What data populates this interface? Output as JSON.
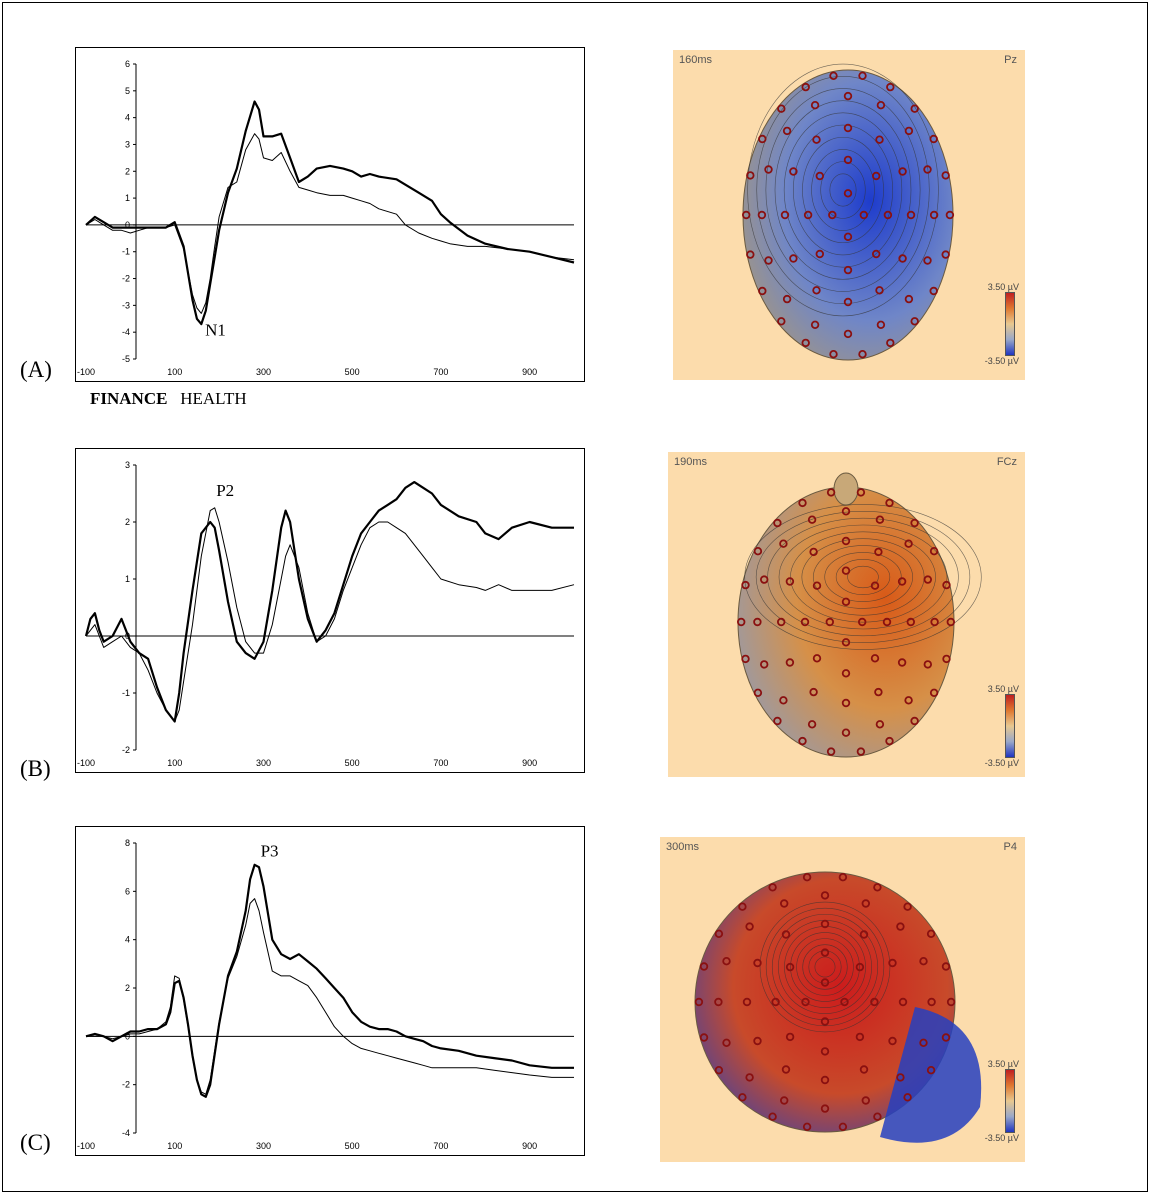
{
  "legend": {
    "bold": "FINANCE",
    "normal": "HEALTH"
  },
  "chart_data": [
    {
      "type": "line",
      "panel_label": "(A)",
      "peak_label": {
        "text": "N1",
        "x": 155,
        "y": -3.6
      },
      "xlim": [
        -100,
        1000
      ],
      "ylim": [
        -5,
        6
      ],
      "xticks": [
        -100,
        100,
        300,
        500,
        700,
        900
      ],
      "yticks": [
        -5,
        -4,
        -3,
        -2,
        -1,
        0,
        1,
        2,
        3,
        4,
        5,
        6
      ],
      "series": [
        {
          "style": "bold",
          "x": [
            -100,
            -80,
            -60,
            -40,
            -20,
            0,
            20,
            40,
            60,
            80,
            100,
            120,
            140,
            150,
            160,
            170,
            180,
            190,
            200,
            220,
            240,
            260,
            280,
            290,
            300,
            320,
            340,
            360,
            380,
            400,
            420,
            450,
            480,
            500,
            520,
            540,
            560,
            600,
            620,
            650,
            680,
            700,
            720,
            760,
            800,
            850,
            900,
            950,
            1000
          ],
          "y": [
            0,
            0.3,
            0.1,
            -0.1,
            -0.1,
            -0.1,
            -0.1,
            -0.1,
            -0.1,
            -0.1,
            0.1,
            -0.8,
            -2.8,
            -3.5,
            -3.7,
            -3.2,
            -2.2,
            -1.2,
            -0.2,
            1.2,
            2.1,
            3.5,
            4.6,
            4.3,
            3.3,
            3.3,
            3.4,
            2.5,
            1.6,
            1.8,
            2.1,
            2.2,
            2.1,
            2.0,
            1.8,
            1.9,
            1.8,
            1.7,
            1.5,
            1.2,
            0.9,
            0.4,
            0.1,
            -0.4,
            -0.7,
            -0.9,
            -1.0,
            -1.2,
            -1.4
          ]
        },
        {
          "style": "thin",
          "x": [
            -100,
            -80,
            -60,
            -40,
            -20,
            0,
            20,
            40,
            60,
            80,
            100,
            120,
            140,
            150,
            160,
            170,
            180,
            190,
            200,
            220,
            240,
            260,
            280,
            290,
            300,
            320,
            340,
            360,
            380,
            400,
            420,
            450,
            480,
            500,
            520,
            540,
            560,
            600,
            620,
            650,
            680,
            700,
            720,
            760,
            800,
            850,
            900,
            950,
            1000
          ],
          "y": [
            0,
            0.2,
            0,
            -0.2,
            -0.2,
            -0.3,
            -0.2,
            -0.1,
            -0.1,
            -0.1,
            0.0,
            -0.9,
            -2.6,
            -3.1,
            -3.3,
            -2.9,
            -2.0,
            -0.8,
            0.3,
            1.4,
            1.6,
            2.8,
            3.4,
            3.2,
            2.5,
            2.4,
            2.7,
            2.0,
            1.4,
            1.3,
            1.2,
            1.1,
            1.1,
            1.0,
            0.9,
            0.8,
            0.6,
            0.4,
            0.0,
            -0.3,
            -0.5,
            -0.6,
            -0.7,
            -0.8,
            -0.8,
            -0.9,
            -1.0,
            -1.2,
            -1.3
          ]
        }
      ]
    },
    {
      "type": "line",
      "panel_label": "(B)",
      "peak_label": {
        "text": "P2",
        "x": 180,
        "y": 2.35
      },
      "xlim": [
        -100,
        1000
      ],
      "ylim": [
        -2,
        3
      ],
      "xticks": [
        -100,
        100,
        300,
        500,
        700,
        900
      ],
      "yticks": [
        -2,
        -1,
        0,
        1,
        2,
        3
      ],
      "series": [
        {
          "style": "bold",
          "x": [
            -100,
            -90,
            -80,
            -70,
            -60,
            -40,
            -20,
            0,
            20,
            40,
            60,
            80,
            100,
            110,
            120,
            140,
            160,
            180,
            190,
            200,
            220,
            240,
            260,
            280,
            300,
            320,
            340,
            350,
            360,
            380,
            400,
            420,
            440,
            460,
            480,
            500,
            520,
            540,
            560,
            580,
            600,
            620,
            640,
            660,
            680,
            700,
            740,
            780,
            800,
            830,
            860,
            900,
            950,
            1000
          ],
          "y": [
            0,
            0.3,
            0.4,
            0.1,
            -0.1,
            0,
            0.3,
            -0.1,
            -0.3,
            -0.4,
            -0.9,
            -1.3,
            -1.5,
            -1.0,
            -0.3,
            0.8,
            1.8,
            2.0,
            1.9,
            1.5,
            0.6,
            -0.1,
            -0.3,
            -0.4,
            -0.1,
            0.8,
            1.9,
            2.2,
            2.0,
            1.0,
            0.3,
            -0.1,
            0.1,
            0.4,
            0.9,
            1.4,
            1.8,
            2.0,
            2.2,
            2.3,
            2.4,
            2.6,
            2.7,
            2.6,
            2.5,
            2.3,
            2.1,
            2.0,
            1.8,
            1.7,
            1.9,
            2.0,
            1.9,
            1.9
          ]
        },
        {
          "style": "thin",
          "x": [
            -100,
            -90,
            -80,
            -70,
            -60,
            -40,
            -20,
            0,
            20,
            40,
            60,
            80,
            100,
            110,
            120,
            140,
            160,
            180,
            190,
            200,
            220,
            240,
            260,
            280,
            300,
            320,
            340,
            350,
            360,
            380,
            400,
            420,
            440,
            460,
            480,
            500,
            520,
            540,
            560,
            580,
            600,
            620,
            640,
            660,
            680,
            700,
            740,
            780,
            800,
            830,
            860,
            900,
            950,
            1000
          ],
          "y": [
            0,
            0.1,
            0.2,
            0,
            -0.2,
            -0.1,
            0,
            -0.2,
            -0.3,
            -0.6,
            -1.0,
            -1.3,
            -1.5,
            -1.3,
            -0.8,
            0.2,
            1.4,
            2.2,
            2.25,
            2.0,
            1.3,
            0.5,
            -0.1,
            -0.3,
            -0.3,
            0.2,
            1.0,
            1.4,
            1.6,
            1.2,
            0.4,
            -0.1,
            0.0,
            0.3,
            0.8,
            1.2,
            1.6,
            1.9,
            2.0,
            2.0,
            1.9,
            1.8,
            1.6,
            1.4,
            1.2,
            1.0,
            0.9,
            0.85,
            0.8,
            0.9,
            0.8,
            0.8,
            0.8,
            0.9
          ]
        }
      ]
    },
    {
      "type": "line",
      "panel_label": "(C)",
      "peak_label": {
        "text": "P3",
        "x": 280,
        "y": 7.2
      },
      "xlim": [
        -100,
        1000
      ],
      "ylim": [
        -4,
        8
      ],
      "xticks": [
        -100,
        100,
        300,
        500,
        700,
        900
      ],
      "yticks": [
        -4,
        -2,
        0,
        2,
        4,
        6,
        8
      ],
      "series": [
        {
          "style": "bold",
          "x": [
            -100,
            -80,
            -60,
            -40,
            -20,
            0,
            20,
            40,
            60,
            80,
            90,
            100,
            110,
            120,
            130,
            140,
            150,
            160,
            170,
            180,
            200,
            220,
            240,
            260,
            270,
            280,
            290,
            300,
            320,
            340,
            360,
            380,
            400,
            420,
            440,
            460,
            480,
            500,
            520,
            540,
            560,
            580,
            600,
            620,
            640,
            660,
            680,
            700,
            740,
            780,
            820,
            860,
            900,
            950,
            1000
          ],
          "y": [
            0,
            0.1,
            0,
            -0.2,
            0,
            0.2,
            0.2,
            0.3,
            0.3,
            0.5,
            1.0,
            2.2,
            2.3,
            1.6,
            0.5,
            -0.8,
            -1.8,
            -2.4,
            -2.5,
            -2.0,
            0.5,
            2.5,
            3.5,
            5.2,
            6.5,
            7.1,
            7.0,
            6.2,
            4.0,
            3.4,
            3.2,
            3.4,
            3.1,
            2.8,
            2.4,
            2.0,
            1.6,
            1.0,
            0.6,
            0.4,
            0.3,
            0.3,
            0.2,
            0.0,
            -0.1,
            -0.2,
            -0.4,
            -0.5,
            -0.6,
            -0.8,
            -0.9,
            -1.0,
            -1.2,
            -1.3,
            -1.3
          ]
        },
        {
          "style": "thin",
          "x": [
            -100,
            -80,
            -60,
            -40,
            -20,
            0,
            20,
            40,
            60,
            80,
            90,
            100,
            110,
            120,
            130,
            140,
            150,
            160,
            170,
            180,
            200,
            220,
            240,
            260,
            270,
            280,
            290,
            300,
            320,
            340,
            360,
            380,
            400,
            420,
            440,
            460,
            480,
            500,
            520,
            540,
            560,
            580,
            600,
            620,
            640,
            660,
            680,
            700,
            740,
            780,
            820,
            860,
            900,
            950,
            1000
          ],
          "y": [
            0,
            0,
            0,
            -0.1,
            0,
            0.1,
            0.1,
            0.2,
            0.3,
            0.6,
            1.2,
            2.5,
            2.4,
            1.5,
            0.4,
            -0.9,
            -1.8,
            -2.3,
            -2.4,
            -1.8,
            0.6,
            2.4,
            3.3,
            4.6,
            5.5,
            5.7,
            5.2,
            4.3,
            2.7,
            2.5,
            2.5,
            2.3,
            2.1,
            1.6,
            1.0,
            0.4,
            0.0,
            -0.3,
            -0.5,
            -0.6,
            -0.7,
            -0.8,
            -0.9,
            -1.0,
            -1.1,
            -1.2,
            -1.3,
            -1.3,
            -1.3,
            -1.3,
            -1.4,
            -1.5,
            -1.6,
            -1.7,
            -1.7
          ]
        }
      ]
    }
  ],
  "maps": [
    {
      "time": "160ms",
      "electrode": "Pz",
      "scale_hi": "3.50 µV",
      "scale_lo": "-3.50 µV",
      "view": "back",
      "center_color": "#1e3ccc",
      "edge_color": "#b09a70"
    },
    {
      "time": "190ms",
      "electrode": "FCz",
      "scale_hi": "3.50 µV",
      "scale_lo": "-3.50 µV",
      "view": "top",
      "center_color": "#d85a18",
      "edge_color": "#9a9aa6"
    },
    {
      "time": "300ms",
      "electrode": "P4",
      "scale_hi": "3.50 µV",
      "scale_lo": "-3.50 µV",
      "view": "right",
      "center_color": "#cc1c1c",
      "edge_color": "#2040c0"
    }
  ]
}
